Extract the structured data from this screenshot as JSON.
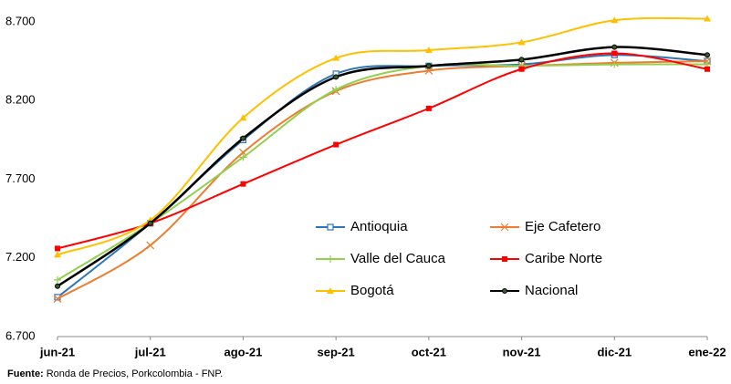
{
  "chart_data": {
    "type": "line",
    "categories": [
      "jun-21",
      "jul-21",
      "ago-21",
      "sep-21",
      "oct-21",
      "nov-21",
      "dic-21",
      "ene-22"
    ],
    "series": [
      {
        "name": "Antioquia",
        "color": "#2e75b6",
        "marker": "square-open",
        "values": [
          6950,
          7420,
          7950,
          8370,
          8420,
          8430,
          8490,
          8450
        ]
      },
      {
        "name": "Eje Cafetero",
        "color": "#ed7d31",
        "marker": "x",
        "values": [
          6940,
          7280,
          7870,
          8260,
          8390,
          8420,
          8440,
          8450
        ]
      },
      {
        "name": "Valle del Cauca",
        "color": "#92d050",
        "marker": "plus",
        "values": [
          7060,
          7420,
          7840,
          8270,
          8420,
          8420,
          8430,
          8430
        ]
      },
      {
        "name": "Caribe Norte",
        "color": "#ff0000",
        "marker": "square",
        "values": [
          7260,
          7420,
          7670,
          7920,
          8150,
          8400,
          8500,
          8400
        ]
      },
      {
        "name": "Bogotá",
        "color": "#ffc000",
        "marker": "triangle",
        "values": [
          7220,
          7440,
          8090,
          8470,
          8520,
          8570,
          8710,
          8720
        ]
      },
      {
        "name": "Nacional",
        "color": "#000000",
        "marker": "circle",
        "values": [
          7020,
          7420,
          7960,
          8350,
          8420,
          8460,
          8540,
          8490
        ]
      }
    ],
    "ylim": [
      6700,
      8700
    ],
    "yticks": [
      {
        "value": 6700,
        "label": "6.700"
      },
      {
        "value": 7200,
        "label": "7.200"
      },
      {
        "value": 7700,
        "label": "7.700"
      },
      {
        "value": 8200,
        "label": "8.200"
      },
      {
        "value": 8700,
        "label": "8.700"
      }
    ],
    "grid": false
  },
  "source": {
    "label": "Fuente:",
    "text": "Ronda de Precios, Porkcolombia - FNP."
  }
}
